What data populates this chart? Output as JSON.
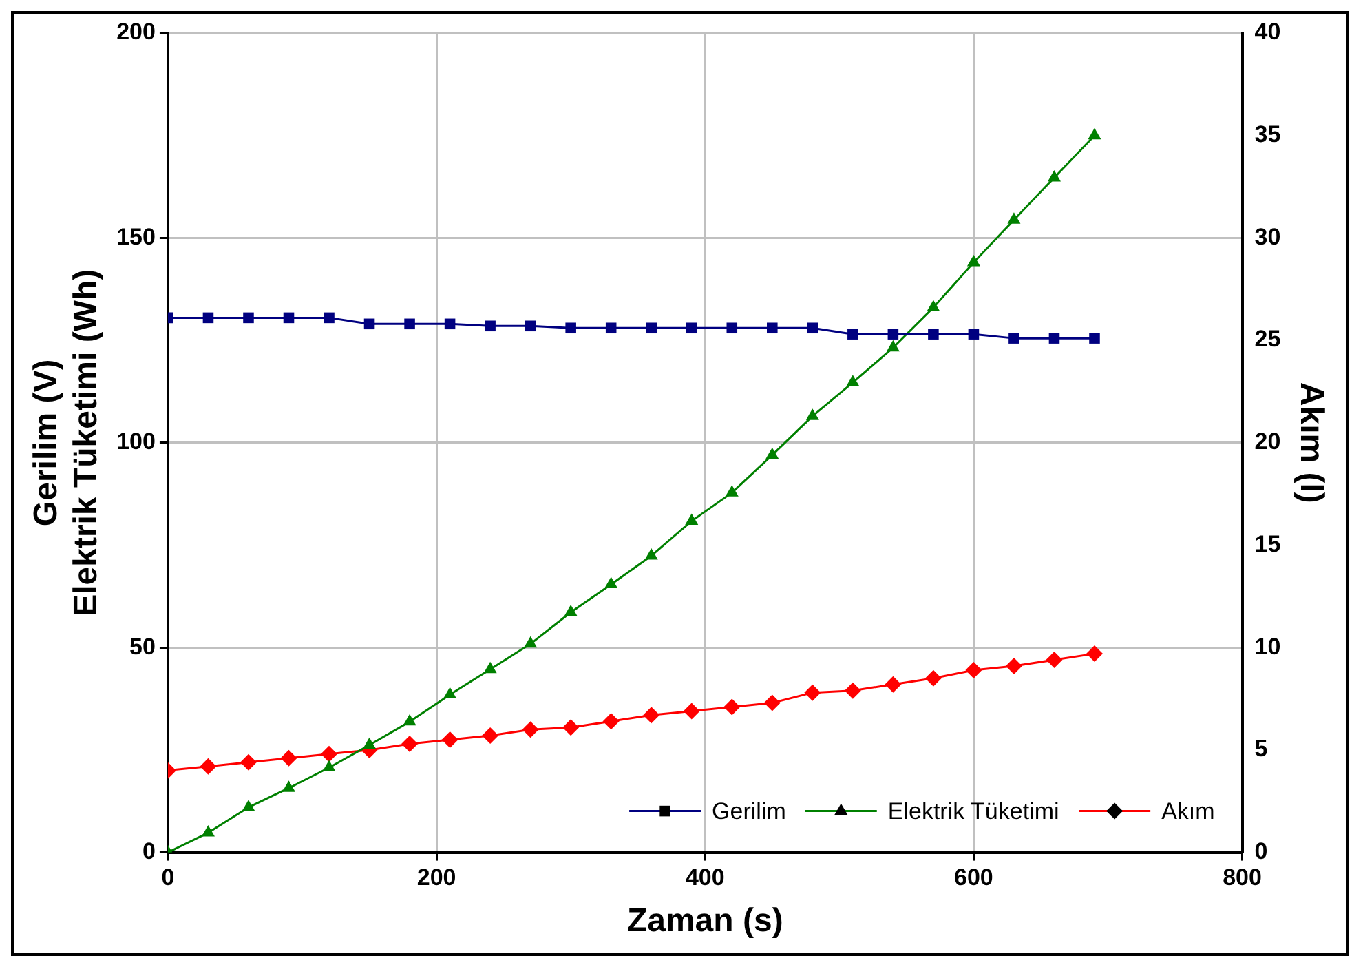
{
  "chart_data": {
    "type": "line",
    "xlabel": "Zaman (s)",
    "ylabel": "Gerilim (V)\nElektrik Tüketimi (Wh)",
    "y2label": "Akım (I)",
    "x": [
      0,
      30,
      60,
      90,
      120,
      150,
      180,
      210,
      240,
      270,
      300,
      330,
      360,
      390,
      420,
      450,
      480,
      510,
      540,
      570,
      600,
      630,
      660,
      690
    ],
    "series": [
      {
        "name": "Gerilim",
        "color": "#000080",
        "marker": "square",
        "values": [
          130.5,
          130.5,
          130.5,
          130.5,
          130.5,
          129,
          129,
          129,
          128.5,
          128.5,
          128,
          128,
          128,
          128,
          128,
          128,
          128,
          126.5,
          126.5,
          126.5,
          126.5,
          125.5,
          125.5,
          125.5
        ]
      },
      {
        "name": "Elektrik Tüketimi",
        "color": "#008000",
        "marker": "triangle",
        "values": [
          0,
          4.8,
          11,
          15.7,
          20.7,
          26.2,
          31.9,
          38.5,
          44.7,
          50.9,
          58.6,
          65.4,
          72.4,
          80.9,
          87.8,
          97,
          106.5,
          114.7,
          123.2,
          133,
          144,
          154.4,
          164.7,
          175
        ]
      },
      {
        "name": "Akım",
        "color": "#ff0000",
        "marker": "diamond",
        "axis": "y2",
        "values": [
          4.0,
          4.2,
          4.4,
          4.6,
          4.8,
          5.0,
          5.3,
          5.5,
          5.7,
          6.0,
          6.1,
          6.4,
          6.7,
          6.9,
          7.1,
          7.3,
          7.8,
          7.9,
          8.2,
          8.5,
          8.9,
          9.1,
          9.4,
          9.7
        ]
      }
    ],
    "xlim": [
      0,
      800
    ],
    "xticks": [
      0,
      200,
      400,
      600,
      800
    ],
    "ylim": [
      0,
      200
    ],
    "yticks": [
      0,
      50,
      100,
      150,
      200
    ],
    "y2lim": [
      0,
      40
    ],
    "y2ticks": [
      0,
      5,
      10,
      15,
      20,
      25,
      30,
      35,
      40
    ],
    "grid": true,
    "legend": "bottom right",
    "line_style": "solid"
  }
}
